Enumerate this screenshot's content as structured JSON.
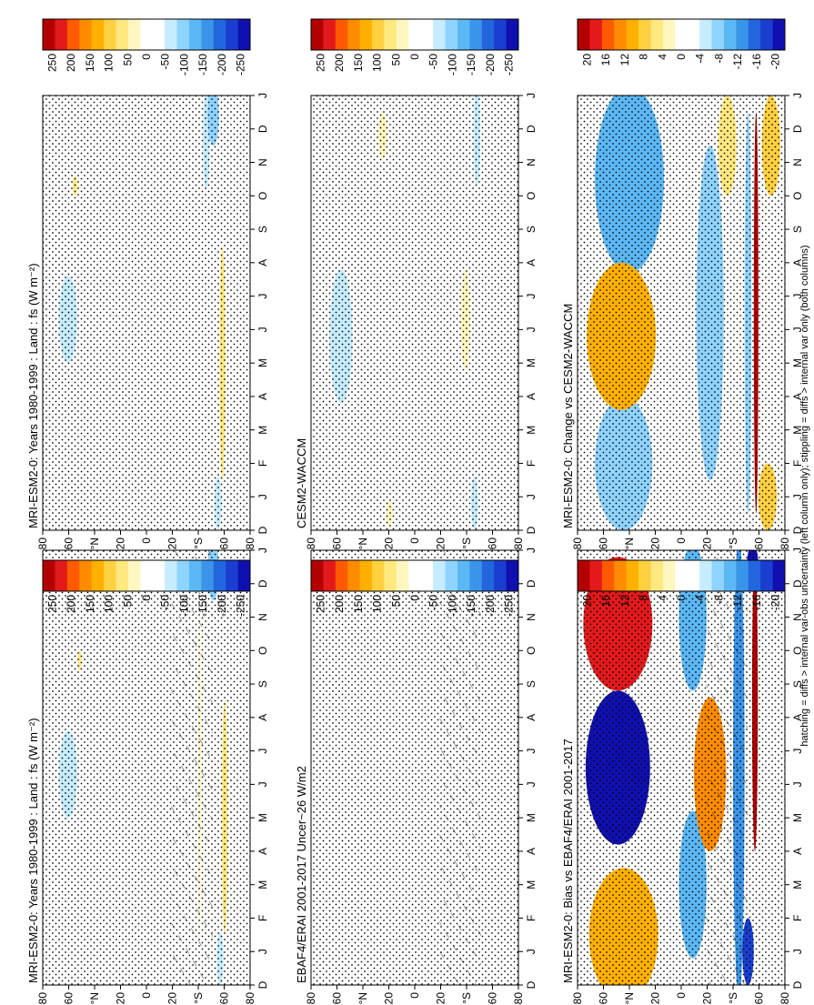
{
  "figure": {
    "orientation": "rotated-90-ccw",
    "footnote": "hatching = diffs > internal var-obs uncertainty (left column only); stippling = diffs > internal var only (both columns)"
  },
  "palettes": {
    "diverging": [
      "#b30000",
      "#e31a1c",
      "#ff5a00",
      "#ff8c00",
      "#ffb000",
      "#ffd040",
      "#ffe880",
      "#fff6c0",
      "#ffffff",
      "#ffffff",
      "#c6ecff",
      "#8fd3ff",
      "#5cb8f5",
      "#3a95ea",
      "#2166dc",
      "#1a3fd0",
      "#1010b0"
    ]
  },
  "chart_data": [
    {
      "type": "heatmap",
      "title": "MRI-ESM2-0: Years 1980-1999 : Land : fs (W m⁻²)",
      "x_categories": [
        "D",
        "J",
        "F",
        "M",
        "A",
        "M",
        "J",
        "J",
        "A",
        "S",
        "O",
        "N",
        "D",
        "J"
      ],
      "y_ticks": [
        "80",
        "60",
        "°N",
        "20",
        "0",
        "20",
        "°S",
        "60",
        "80"
      ],
      "colorbar_ticks": [
        "250",
        "200",
        "150",
        "100",
        "50",
        "0",
        "-50",
        "-100",
        "-150",
        "-200",
        "-250"
      ],
      "colorbar_range": [
        -250,
        250
      ],
      "stippling": true,
      "hatching": true,
      "features": [
        {
          "month": 6.3,
          "lat": 68,
          "dm": 1.3,
          "dl": 8,
          "value": -60
        },
        {
          "month": 6.3,
          "lat": -46,
          "dm": 5,
          "dl": 1.2,
          "value": 25
        },
        {
          "month": 10.8,
          "lat": -48,
          "dm": 1.2,
          "dl": 1.5,
          "value": -40
        },
        {
          "month": 5.0,
          "lat": -68,
          "dm": 3.5,
          "dl": 2.5,
          "value": 60
        },
        {
          "month": 0.8,
          "lat": -64,
          "dm": 0.8,
          "dl": 3,
          "value": -60
        },
        {
          "month": 12.4,
          "lat": -58,
          "dm": 0.9,
          "dl": 5,
          "value": -90
        },
        {
          "month": 9.7,
          "lat": 58,
          "dm": 0.3,
          "dl": 1.5,
          "value": 60
        }
      ]
    },
    {
      "type": "heatmap",
      "title": "MRI-ESM2-0: Years 1980-1999 : Land : fs (W m⁻²)",
      "x_categories": [
        "D",
        "J",
        "F",
        "M",
        "A",
        "M",
        "J",
        "J",
        "A",
        "S",
        "O",
        "N",
        "D",
        "J"
      ],
      "y_ticks": [
        "80",
        "60",
        "°N",
        "20",
        "0",
        "20",
        "°S",
        "60",
        "80"
      ],
      "colorbar_ticks": [
        "250",
        "200",
        "150",
        "100",
        "50",
        "0",
        "-50",
        "-100",
        "-150",
        "-200",
        "-250"
      ],
      "colorbar_range": [
        -250,
        250
      ],
      "stippling": true,
      "hatching": false,
      "features": [
        {
          "month": 6.3,
          "lat": 68,
          "dm": 1.3,
          "dl": 8,
          "value": -60
        },
        {
          "month": 11.7,
          "lat": -52,
          "dm": 1.5,
          "dl": 3,
          "value": -60
        },
        {
          "month": 5.0,
          "lat": -66,
          "dm": 3.5,
          "dl": 2.5,
          "value": 55
        },
        {
          "month": 0.8,
          "lat": -62,
          "dm": 0.8,
          "dl": 3,
          "value": -60
        },
        {
          "month": 12.4,
          "lat": -58,
          "dm": 0.9,
          "dl": 5,
          "value": -80
        },
        {
          "month": 10.3,
          "lat": 62,
          "dm": 0.3,
          "dl": 2,
          "value": 60
        }
      ]
    },
    {
      "type": "heatmap",
      "title": "EBAF4/ERAI 2001-2017 Uncer~26 W/m2",
      "x_categories": [
        "D",
        "J",
        "F",
        "M",
        "A",
        "M",
        "J",
        "J",
        "A",
        "S",
        "O",
        "N",
        "D",
        "J"
      ],
      "y_ticks": [
        "80",
        "60",
        "°N",
        "20",
        "0",
        "20",
        "°S",
        "60",
        "80"
      ],
      "colorbar_ticks": [
        "250",
        "200",
        "150",
        "100",
        "50",
        "0",
        "-50",
        "-100",
        "-150",
        "-200",
        "-250"
      ],
      "colorbar_range": [
        -250,
        250
      ],
      "stippling": true,
      "hatching": true,
      "features": []
    },
    {
      "type": "heatmap",
      "title": "CESM2-WACCM",
      "x_categories": [
        "D",
        "J",
        "F",
        "M",
        "A",
        "M",
        "J",
        "J",
        "A",
        "S",
        "O",
        "N",
        "D",
        "J"
      ],
      "y_ticks": [
        "80",
        "60",
        "°N",
        "20",
        "0",
        "20",
        "°S",
        "60",
        "80"
      ],
      "colorbar_ticks": [
        "250",
        "200",
        "150",
        "100",
        "50",
        "0",
        "-50",
        "-100",
        "-150",
        "-200",
        "-250"
      ],
      "colorbar_range": [
        -250,
        250
      ],
      "stippling": true,
      "hatching": false,
      "features": [
        {
          "month": 5.8,
          "lat": 64,
          "dm": 2,
          "dl": 10,
          "value": -60
        },
        {
          "month": 11.8,
          "lat": -54,
          "dm": 1.5,
          "dl": 3,
          "value": -55
        },
        {
          "month": 6.3,
          "lat": -44,
          "dm": 1.5,
          "dl": 4,
          "value": 25
        },
        {
          "month": 11.8,
          "lat": 28,
          "dm": 0.7,
          "dl": 4,
          "value": 35
        },
        {
          "month": 0.5,
          "lat": 22,
          "dm": 0.4,
          "dl": 3,
          "value": 35
        },
        {
          "month": 0.8,
          "lat": -52,
          "dm": 0.8,
          "dl": 3,
          "value": -50
        }
      ]
    },
    {
      "type": "heatmap",
      "title": "MRI-ESM2-0: Bias vs EBAF4/ERAI 2001-2017",
      "x_categories": [
        "D",
        "J",
        "F",
        "M",
        "A",
        "M",
        "J",
        "J",
        "A",
        "S",
        "O",
        "N",
        "D",
        "J"
      ],
      "y_ticks": [
        "80",
        "60",
        "°N",
        "20",
        "0",
        "20",
        "°S",
        "60",
        "80"
      ],
      "colorbar_ticks": [
        "20",
        "16",
        "12",
        "8",
        "4",
        "0",
        "-4",
        "-8",
        "-12",
        "-16",
        "-20"
      ],
      "colorbar_range": [
        -20,
        20
      ],
      "stippling": true,
      "hatching": true,
      "features": [
        {
          "month": 1.5,
          "lat": 50,
          "dm": 2.0,
          "dl": 30,
          "value": 10
        },
        {
          "month": 10.8,
          "lat": 55,
          "dm": 2.0,
          "dl": 30,
          "value": 17
        },
        {
          "month": 6.5,
          "lat": 55,
          "dm": 2.3,
          "dl": 28,
          "value": -18
        },
        {
          "month": 3.0,
          "lat": -10,
          "dm": 2.2,
          "dl": 12,
          "value": -9
        },
        {
          "month": 11.0,
          "lat": -10,
          "dm": 2.2,
          "dl": 12,
          "value": -9
        },
        {
          "month": 6.3,
          "lat": -25,
          "dm": 2.3,
          "dl": 14,
          "value": 11
        },
        {
          "month": 6.5,
          "lat": -50,
          "dm": 7.0,
          "dl": 5,
          "value": -12
        },
        {
          "month": 8.5,
          "lat": -64,
          "dm": 4.5,
          "dl": 2.5,
          "value": 20
        },
        {
          "month": 1.0,
          "lat": -58,
          "dm": 1.0,
          "dl": 5,
          "value": -17
        },
        {
          "month": 12.5,
          "lat": -62,
          "dm": 0.7,
          "dl": 5,
          "value": -18
        }
      ]
    },
    {
      "type": "heatmap",
      "title": "MRI-ESM2-0: Change vs CESM2-WACCM",
      "x_categories": [
        "D",
        "J",
        "F",
        "M",
        "A",
        "M",
        "J",
        "J",
        "A",
        "S",
        "O",
        "N",
        "D",
        "J"
      ],
      "y_ticks": [
        "80",
        "60",
        "°N",
        "20",
        "0",
        "20",
        "°S",
        "60",
        "80"
      ],
      "colorbar_ticks": [
        "20",
        "16",
        "12",
        "8",
        "4",
        "0",
        "-4",
        "-8",
        "-12",
        "-16",
        "-20"
      ],
      "colorbar_range": [
        -20,
        20
      ],
      "stippling": true,
      "hatching": false,
      "features": [
        {
          "month": 2.0,
          "lat": 50,
          "dm": 2.0,
          "dl": 25,
          "value": -8
        },
        {
          "month": 10.5,
          "lat": 45,
          "dm": 2.8,
          "dl": 30,
          "value": -9
        },
        {
          "month": 5.8,
          "lat": 52,
          "dm": 2.2,
          "dl": 30,
          "value": 9
        },
        {
          "month": 6.5,
          "lat": -25,
          "dm": 5.0,
          "dl": 12,
          "value": -6
        },
        {
          "month": 6.5,
          "lat": -65,
          "dm": 6.0,
          "dl": 2.0,
          "value": 19
        },
        {
          "month": 6.5,
          "lat": -58,
          "dm": 6.0,
          "dl": 3.0,
          "value": -7
        },
        {
          "month": 11.5,
          "lat": -78,
          "dm": 1.5,
          "dl": 8,
          "value": 7
        },
        {
          "month": 11.5,
          "lat": -40,
          "dm": 1.5,
          "dl": 8,
          "value": 5
        },
        {
          "month": 1.0,
          "lat": -75,
          "dm": 1.0,
          "dl": 8,
          "value": 7
        }
      ]
    }
  ]
}
